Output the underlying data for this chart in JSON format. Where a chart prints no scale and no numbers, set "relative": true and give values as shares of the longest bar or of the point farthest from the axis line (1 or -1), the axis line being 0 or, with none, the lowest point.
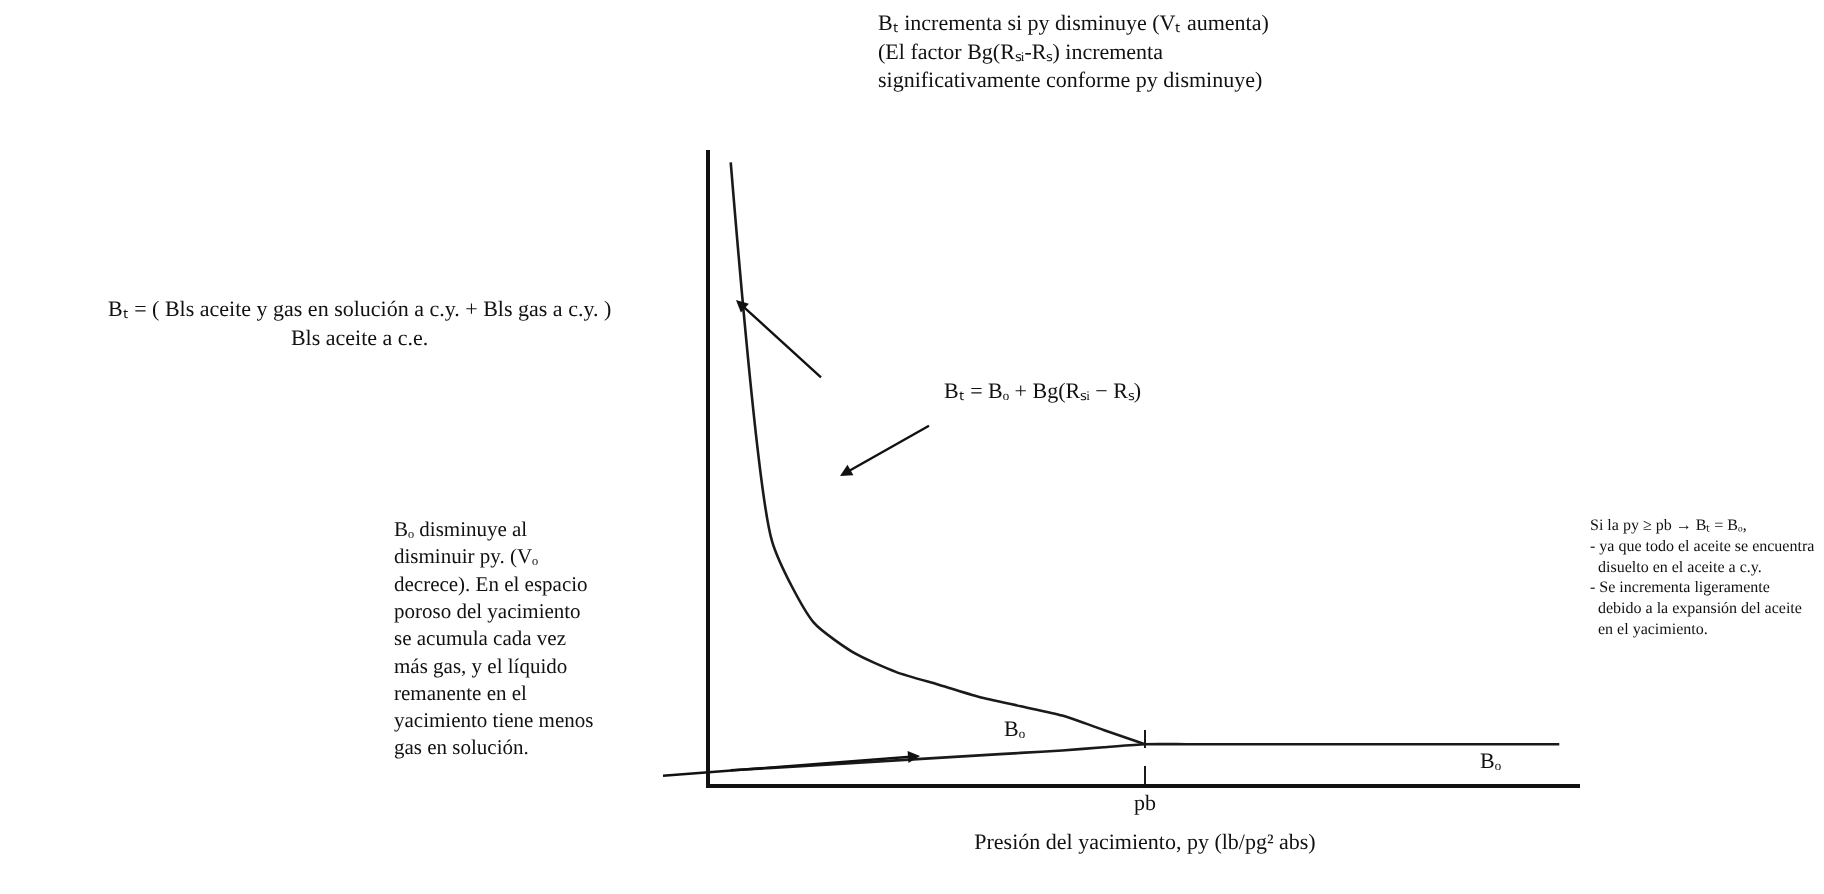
{
  "chart_data": {
    "type": "line",
    "relative": true,
    "legend": false,
    "grid": false,
    "tick_labels": "x",
    "marker": "none",
    "line_style": "solid",
    "xlabel": "Presión del yacimiento, py (lb/pg² abs)",
    "categories": [
      null,
      null,
      null,
      null,
      null,
      null,
      null,
      null,
      null,
      null,
      null,
      null,
      null,
      null,
      null,
      null,
      null,
      null,
      null,
      null,
      null
    ],
    "series": [
      {
        "color": "#1a1a1a",
        "values": [
          1.0,
          0.39,
          0.26,
          0.21,
          0.18,
          0.16,
          0.14,
          0.125,
          0.11,
          0.087,
          0.064,
          null,
          null,
          null,
          null,
          null,
          null,
          null,
          null,
          null,
          null
        ]
      },
      {
        "color": "#1a1a1a",
        "values": [
          0.022,
          0.026,
          0.03,
          0.034,
          0.038,
          0.042,
          0.046,
          0.05,
          0.054,
          0.059,
          0.064,
          0.064,
          0.064,
          0.064,
          0.064,
          0.064,
          0.064,
          0.064,
          0.064,
          0.064,
          0.064
        ]
      }
    ],
    "ref_lines": [
      {
        "axis": "x",
        "label": "pb",
        "line_style": "dashed",
        "color": "#1a1a1a"
      }
    ],
    "annotations": [
      "Bₜ incrementa si py disminuye (Vₜ aumenta)\n(El factor Bg(Rₛᵢ-Rₛ) incrementa\nsignificativamente conforme py disminuye)",
      "Bₜ = ( Bls aceite y gas en solución a c.y. + Bls gas a c.y. )\nBls aceite a c.e.",
      "Bₜ = Bₒ + Bg(Rₛᵢ − Rₛ)",
      "Bₒ disminuye al\ndisminuir py. (Vₒ\ndecrece). En el espacio\nporoso del yacimiento\nse acumula cada vez\nmás gas, y el líquido\nremanente en el\nyacimiento tiene menos\ngas en solución.",
      "Bₒ",
      "Bₒ",
      "Si la py ≥ pb → Bₜ = Bₒ,\n- ya que todo el aceite se encuentra\n  disuelto en el aceite a c.y.\n- Se incrementa ligeramente\n  debido a la expansión del aceite\n  en el yacimiento."
    ]
  }
}
